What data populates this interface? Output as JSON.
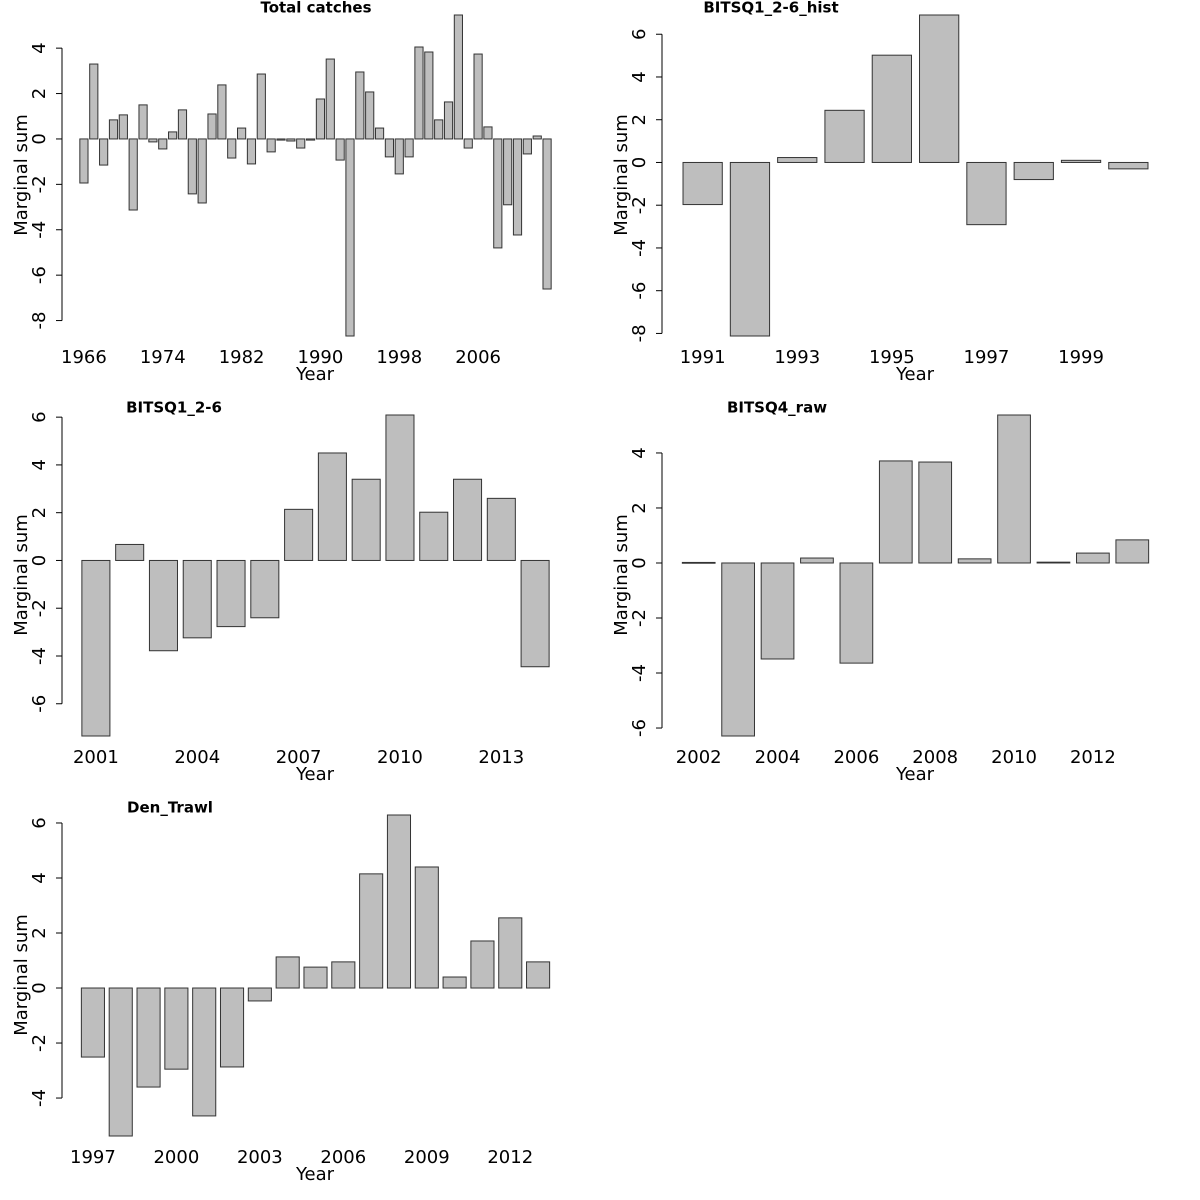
{
  "chart_data": [
    {
      "type": "bar",
      "title": "Total catches",
      "xlabel": "Year",
      "ylabel": "Marginal sum",
      "color": "#bebebe",
      "x": [
        1966,
        1967,
        1968,
        1969,
        1970,
        1971,
        1972,
        1973,
        1974,
        1975,
        1976,
        1977,
        1978,
        1979,
        1980,
        1981,
        1982,
        1983,
        1984,
        1985,
        1986,
        1987,
        1988,
        1989,
        1990,
        1991,
        1992,
        1993,
        1994,
        1995,
        1996,
        1997,
        1998,
        1999,
        2000,
        2001,
        2002,
        2003,
        2004,
        2005,
        2006,
        2007,
        2008,
        2009,
        2010,
        2011,
        2012,
        2013
      ],
      "values": [
        -1.94,
        3.3,
        -1.15,
        0.84,
        1.06,
        -3.13,
        1.5,
        -0.13,
        -0.44,
        0.31,
        1.28,
        -2.42,
        -2.82,
        1.1,
        2.38,
        -0.84,
        0.48,
        -1.1,
        2.86,
        -0.57,
        -0.05,
        -0.09,
        -0.4,
        -0.05,
        1.76,
        3.52,
        -0.93,
        -8.68,
        2.95,
        2.07,
        0.48,
        -0.79,
        -1.54,
        -0.79,
        4.05,
        3.83,
        0.84,
        1.63,
        5.46,
        -0.4,
        3.74,
        0.53,
        -4.8,
        -2.9,
        -4.23,
        -0.66,
        0.13,
        -6.61
      ],
      "xlim": [
        1965.5,
        2013.5
      ],
      "ylim": [
        -8.68,
        5.46
      ],
      "xticks": [
        1966,
        1974,
        1982,
        1990,
        1998,
        2006
      ],
      "yticks": [
        -8,
        -6,
        -4,
        -2,
        0,
        2,
        4
      ]
    },
    {
      "type": "bar",
      "title": "BITSQ1_2-6_hist",
      "xlabel": "Year",
      "ylabel": "Marginal sum",
      "color": "#bebebe",
      "x": [
        1991,
        1992,
        1993,
        1994,
        1995,
        1996,
        1997,
        1998,
        1999,
        2000
      ],
      "values": [
        -1.97,
        -8.12,
        0.23,
        2.44,
        5.02,
        6.9,
        -2.91,
        -0.8,
        0.1,
        -0.3
      ],
      "xlim": [
        1990.5,
        2000.5
      ],
      "ylim": [
        -8.12,
        6.9
      ],
      "xticks": [
        1991,
        1993,
        1995,
        1997,
        1999
      ],
      "yticks": [
        -8,
        -6,
        -4,
        -2,
        0,
        2,
        4,
        6
      ]
    },
    {
      "type": "bar",
      "title": "BITSQ1_2-6",
      "xlabel": "Year",
      "ylabel": "Marginal sum",
      "color": "#bebebe",
      "x": [
        2001,
        2002,
        2003,
        2004,
        2005,
        2006,
        2007,
        2008,
        2009,
        2010,
        2011,
        2012,
        2013,
        2014
      ],
      "values": [
        -7.35,
        0.67,
        -3.78,
        -3.24,
        -2.77,
        -2.4,
        2.14,
        4.5,
        3.4,
        6.09,
        2.02,
        3.4,
        2.6,
        -4.45
      ],
      "xlim": [
        2000.5,
        2014.5
      ],
      "ylim": [
        -7.35,
        6.09
      ],
      "xticks": [
        2001,
        2004,
        2007,
        2010,
        2013
      ],
      "yticks": [
        -6,
        -4,
        -2,
        0,
        2,
        4,
        6
      ]
    },
    {
      "type": "bar",
      "title": "BITSQ4_raw",
      "xlabel": "Year",
      "ylabel": "Marginal sum",
      "color": "#bebebe",
      "x": [
        2002,
        2003,
        2004,
        2005,
        2006,
        2007,
        2008,
        2009,
        2010,
        2011,
        2012,
        2013
      ],
      "values": [
        0.02,
        -6.29,
        -3.49,
        0.18,
        -3.64,
        3.71,
        3.67,
        0.15,
        5.38,
        0.03,
        0.36,
        0.84
      ],
      "xlim": [
        2001.5,
        2013.5
      ],
      "ylim": [
        -6.29,
        5.38
      ],
      "xticks": [
        2002,
        2004,
        2006,
        2008,
        2010,
        2012
      ],
      "yticks": [
        -6,
        -4,
        -2,
        0,
        2,
        4
      ]
    },
    {
      "type": "bar",
      "title": "Den_Trawl",
      "xlabel": "Year",
      "ylabel": "Marginal sum",
      "color": "#bebebe",
      "x": [
        1997,
        1998,
        1999,
        2000,
        2001,
        2002,
        2003,
        2004,
        2005,
        2006,
        2007,
        2008,
        2009,
        2010,
        2011,
        2012,
        2013
      ],
      "values": [
        -2.51,
        -5.38,
        -3.6,
        -2.95,
        -4.65,
        -2.87,
        -0.47,
        1.13,
        0.76,
        0.95,
        4.15,
        6.29,
        4.4,
        0.4,
        1.71,
        2.55,
        0.95
      ],
      "xlim": [
        1996.5,
        2013.5
      ],
      "ylim": [
        -5.38,
        6.29
      ],
      "xticks": [
        1997,
        2000,
        2003,
        2006,
        2009,
        2012
      ],
      "yticks": [
        -4,
        -2,
        0,
        2,
        4,
        6
      ]
    }
  ]
}
